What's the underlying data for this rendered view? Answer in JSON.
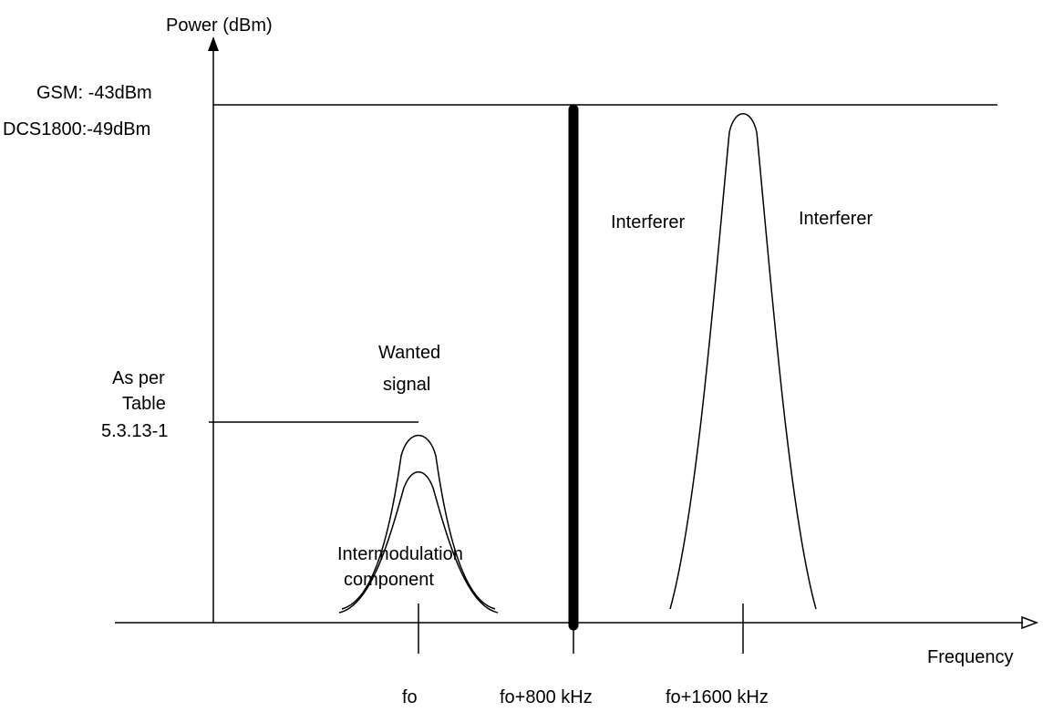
{
  "axes": {
    "y_label": "Power (dBm)",
    "x_label": "Frequency"
  },
  "levels": {
    "upper_line1": "GSM: -43dBm",
    "upper_line2": "DCS1800:-49dBm",
    "lower_line1": "As per",
    "lower_line2": "Table",
    "lower_line3": "5.3.13-1"
  },
  "frequencies": {
    "f0": "fo",
    "f800": "fo+800 kHz",
    "f1600": "fo+1600 kHz"
  },
  "signals": {
    "wanted_line1": "Wanted",
    "wanted_line2": "signal",
    "intermod_line1": "Intermodulation",
    "intermod_line2": "component",
    "interferer_cw": "Interferer",
    "interferer_mod": "Interferer"
  },
  "colors": {
    "ink": "#000000",
    "background": "#ffffff"
  }
}
